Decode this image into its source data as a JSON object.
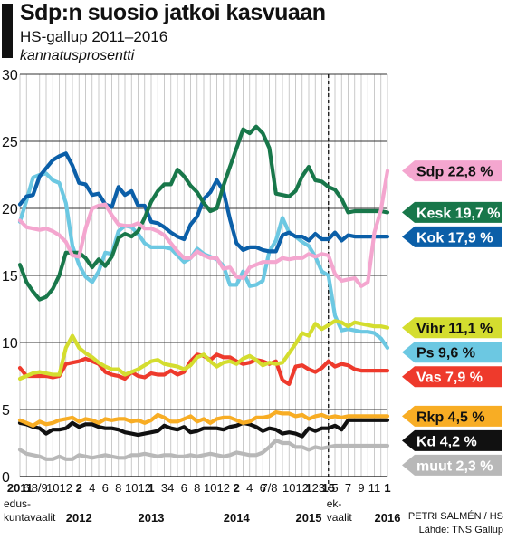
{
  "header": {
    "title": "Sdp:n suosio jatkoi kasvuaan",
    "subtitle": "HS-gallup 2011–2016",
    "unit": "kannatusprosentti"
  },
  "credits": {
    "author": "PETRI SALMÉN / HS",
    "source": "Lähde: TNS Gallup"
  },
  "chart_data": {
    "type": "line",
    "title": "Sdp:n suosio jatkoi kasvuaan",
    "subtitle": "HS-gallup 2011–2016",
    "ylabel": "kannatusprosentti",
    "ylim": [
      0,
      30
    ],
    "yticks": [
      "0",
      "5",
      "10",
      "15",
      "20",
      "25",
      "30"
    ],
    "grid": true,
    "x": [
      "2011-04",
      "2011-06",
      "2011-07",
      "2011-08",
      "2011-09",
      "2011-10",
      "2011-11",
      "2011-12",
      "2012-01",
      "2012-02",
      "2012-03",
      "2012-04",
      "2012-05",
      "2012-06",
      "2012-07",
      "2012-08",
      "2012-09",
      "2012-10",
      "2012-11",
      "2012-12",
      "2013-01",
      "2013-02",
      "2013-03",
      "2013-04",
      "2013-05",
      "2013-06",
      "2013-07",
      "2013-08",
      "2013-09",
      "2013-10",
      "2013-11",
      "2013-12",
      "2014-01",
      "2014-02",
      "2014-03",
      "2014-04",
      "2014-05",
      "2014-06",
      "2014-07",
      "2014-08",
      "2014-09",
      "2014-10",
      "2014-11",
      "2014-12",
      "2015-01",
      "2015-02",
      "2015-03",
      "2015-04",
      "2015-05",
      "2015-06",
      "2015-07",
      "2015-08",
      "2015-09",
      "2015-10",
      "2015-11",
      "2015-12",
      "2016-01"
    ],
    "x_tick_labels": [
      {
        "month": "2011-04",
        "text": "2011",
        "bold": true
      },
      {
        "month": "2011-06",
        "text": "6"
      },
      {
        "month": "2011-08",
        "text": "8/9"
      },
      {
        "month": "2011-10",
        "text": "10"
      },
      {
        "month": "2011-12",
        "text": "12"
      },
      {
        "month": "2012-02",
        "text": "2",
        "bold": true
      },
      {
        "month": "2012-04",
        "text": "4"
      },
      {
        "month": "2012-06",
        "text": "6"
      },
      {
        "month": "2012-08",
        "text": "8"
      },
      {
        "month": "2012-10",
        "text": "10"
      },
      {
        "month": "2012-12",
        "text": "12"
      },
      {
        "month": "2013-01",
        "text": "1",
        "bold": true
      },
      {
        "month": "2013-03",
        "text": "3"
      },
      {
        "month": "2013-04",
        "text": "4"
      },
      {
        "month": "2013-06",
        "text": "6"
      },
      {
        "month": "2013-08",
        "text": "8"
      },
      {
        "month": "2013-10",
        "text": "10"
      },
      {
        "month": "2013-12",
        "text": "12"
      },
      {
        "month": "2014-02",
        "text": "2",
        "bold": true
      },
      {
        "month": "2014-04",
        "text": "4"
      },
      {
        "month": "2014-06",
        "text": "6"
      },
      {
        "month": "2014-07",
        "text": "7/8"
      },
      {
        "month": "2014-10",
        "text": "10"
      },
      {
        "month": "2014-12",
        "text": "12"
      },
      {
        "month": "2015-01",
        "text": "1",
        "bold": true
      },
      {
        "month": "2015-02",
        "text": "2"
      },
      {
        "month": "2015-03",
        "text": "3"
      },
      {
        "month": "2015-04",
        "text": "15",
        "bold": true
      },
      {
        "month": "2015-05",
        "text": "5"
      },
      {
        "month": "2015-07",
        "text": "7"
      },
      {
        "month": "2015-09",
        "text": "9"
      },
      {
        "month": "2015-11",
        "text": "11"
      },
      {
        "month": "2016-01",
        "text": "1",
        "bold": true
      }
    ],
    "year_labels": [
      {
        "month": "2012-02",
        "text": "2012"
      },
      {
        "month": "2013-01",
        "text": "2013"
      },
      {
        "month": "2014-02",
        "text": "2014"
      },
      {
        "month": "2015-01",
        "text": "2015"
      },
      {
        "month": "2016-01",
        "text": "2016"
      }
    ],
    "annotations": [
      {
        "month": "2011-04",
        "lines": [
          "edus-",
          "kuntavaalit"
        ]
      },
      {
        "month": "2015-04",
        "lines": [
          "ek-",
          "vaalit"
        ],
        "dashed_line": true
      }
    ],
    "series": [
      {
        "name": "Sdp",
        "label": "Sdp 22,8 %",
        "color": "#f4a6cf",
        "text_color": "#111111",
        "values": [
          19.1,
          18.6,
          18.5,
          18.4,
          18.5,
          18.3,
          18.0,
          17.5,
          16.5,
          16.4,
          18.5,
          20.0,
          20.2,
          20.3,
          19.5,
          18.8,
          18.7,
          18.7,
          18.9,
          18.5,
          18.5,
          18.3,
          18.0,
          17.4,
          16.8,
          16.3,
          16.3,
          16.8,
          16.5,
          16.3,
          16.3,
          15.5,
          15.6,
          14.9,
          14.8,
          15.6,
          15.8,
          16.0,
          16.0,
          16.0,
          16.3,
          16.2,
          16.3,
          16.3,
          16.6,
          16.4,
          16.6,
          16.5,
          15.1,
          14.6,
          14.7,
          14.8,
          14.2,
          14.5,
          18.2,
          19.9,
          22.8
        ]
      },
      {
        "name": "Kesk",
        "label": "Kesk 19,7 %",
        "color": "#18774a",
        "text_color": "#ffffff",
        "values": [
          15.8,
          14.5,
          13.8,
          13.2,
          13.4,
          14.0,
          15.0,
          16.7,
          16.7,
          16.7,
          16.3,
          15.6,
          16.2,
          15.7,
          16.4,
          17.8,
          18.1,
          17.9,
          18.3,
          19.3,
          20.5,
          21.3,
          21.8,
          21.8,
          22.9,
          22.4,
          21.7,
          21.2,
          20.4,
          19.8,
          20.0,
          21.7,
          23.1,
          24.5,
          25.9,
          25.6,
          26.1,
          25.6,
          24.5,
          21.1,
          21.0,
          20.9,
          21.3,
          22.4,
          23.1,
          22.1,
          22.0,
          21.6,
          21.4,
          20.7,
          19.7,
          19.8,
          19.8,
          19.8,
          19.8,
          19.8,
          19.7
        ]
      },
      {
        "name": "Kok",
        "label": "Kok 17,9 %",
        "color": "#0b5fa8",
        "text_color": "#ffffff",
        "values": [
          20.3,
          20.9,
          21.0,
          22.4,
          23.0,
          23.6,
          23.9,
          24.1,
          23.2,
          21.9,
          21.8,
          21.0,
          21.1,
          20.3,
          20.1,
          21.6,
          21.0,
          21.3,
          20.2,
          20.2,
          19.0,
          18.9,
          18.6,
          18.2,
          17.9,
          17.7,
          18.8,
          19.4,
          20.7,
          21.2,
          22.1,
          21.3,
          19.2,
          17.4,
          16.9,
          17.1,
          17.1,
          16.9,
          16.8,
          16.8,
          18.0,
          18.2,
          17.9,
          17.9,
          17.6,
          18.1,
          17.7,
          17.7,
          18.2,
          17.6,
          18.0,
          17.9,
          17.9,
          17.9,
          17.9,
          17.9,
          17.9
        ]
      },
      {
        "name": "Vihr",
        "label": "Vihr 11,1 %",
        "color": "#d4dd2f",
        "text_color": "#111111",
        "values": [
          7.3,
          7.5,
          7.7,
          7.8,
          7.7,
          7.6,
          7.6,
          9.6,
          10.5,
          9.6,
          9.2,
          8.9,
          8.5,
          8.2,
          8.0,
          8.0,
          7.6,
          7.8,
          8.0,
          8.3,
          8.6,
          8.7,
          8.4,
          8.3,
          8.2,
          8.0,
          8.3,
          8.9,
          9.1,
          8.6,
          8.2,
          8.5,
          8.6,
          8.4,
          8.8,
          9.0,
          8.7,
          8.3,
          8.5,
          8.4,
          8.5,
          9.2,
          9.9,
          10.7,
          10.5,
          11.4,
          11.0,
          11.3,
          11.6,
          11.5,
          11.2,
          11.5,
          11.4,
          11.3,
          11.2,
          11.2,
          11.1
        ]
      },
      {
        "name": "Ps",
        "label": "Ps 9,6 %",
        "color": "#6cc8e2",
        "text_color": "#111111",
        "values": [
          19.0,
          20.6,
          22.3,
          22.5,
          22.6,
          22.1,
          21.9,
          20.4,
          17.2,
          15.8,
          14.9,
          14.5,
          15.3,
          16.7,
          16.6,
          18.3,
          18.7,
          18.6,
          18.1,
          17.4,
          17.1,
          17.1,
          17.1,
          17.0,
          16.5,
          16.0,
          16.3,
          17.0,
          16.6,
          16.4,
          16.2,
          15.7,
          14.3,
          14.3,
          15.3,
          14.2,
          14.3,
          14.6,
          16.8,
          17.6,
          19.3,
          18.2,
          17.9,
          17.5,
          17.2,
          16.4,
          15.3,
          15.0,
          12.0,
          10.9,
          11.0,
          10.9,
          10.8,
          10.8,
          10.7,
          10.3,
          9.6
        ]
      },
      {
        "name": "Vas",
        "label": "Vas 7,9 %",
        "color": "#ee3a2c",
        "text_color": "#ffffff",
        "values": [
          8.1,
          7.5,
          7.5,
          7.5,
          7.5,
          7.4,
          7.5,
          8.4,
          8.5,
          8.6,
          8.8,
          8.6,
          8.4,
          7.8,
          7.6,
          7.5,
          7.3,
          7.8,
          7.5,
          7.4,
          7.7,
          7.6,
          7.6,
          7.9,
          7.6,
          7.8,
          8.6,
          9.1,
          9.0,
          8.7,
          9.1,
          8.9,
          8.9,
          8.6,
          8.4,
          8.5,
          8.7,
          8.6,
          8.4,
          8.6,
          7.2,
          6.9,
          8.2,
          8.3,
          8.0,
          7.8,
          8.1,
          8.6,
          8.2,
          8.4,
          8.3,
          8.0,
          7.9,
          7.9,
          7.9,
          7.9,
          7.9
        ]
      },
      {
        "name": "Rkp",
        "label": "Rkp 4,5 %",
        "color": "#f8ad24",
        "text_color": "#111111",
        "values": [
          4.2,
          4.0,
          3.8,
          4.1,
          3.9,
          4.0,
          4.2,
          4.3,
          4.4,
          4.1,
          4.3,
          4.2,
          4.0,
          4.3,
          4.2,
          4.3,
          4.3,
          4.1,
          4.2,
          4.0,
          4.2,
          4.6,
          4.4,
          4.1,
          4.1,
          4.3,
          4.5,
          4.1,
          4.3,
          4.0,
          4.3,
          4.4,
          4.4,
          4.2,
          4.0,
          4.1,
          4.4,
          4.4,
          4.5,
          4.8,
          4.7,
          4.7,
          4.5,
          4.6,
          4.3,
          4.5,
          4.6,
          4.4,
          4.5,
          4.4,
          4.5,
          4.5,
          4.5,
          4.5,
          4.5,
          4.5,
          4.5
        ]
      },
      {
        "name": "Kd",
        "label": "Kd 4,2 %",
        "color": "#111111",
        "text_color": "#ffffff",
        "values": [
          4.0,
          3.9,
          3.7,
          3.6,
          3.2,
          3.5,
          3.5,
          3.6,
          4.0,
          3.7,
          3.9,
          3.9,
          3.7,
          3.6,
          3.6,
          3.5,
          3.3,
          3.2,
          3.1,
          3.2,
          3.3,
          3.4,
          3.8,
          3.6,
          3.5,
          3.7,
          3.3,
          3.4,
          3.6,
          3.6,
          3.6,
          3.5,
          3.7,
          3.8,
          4.0,
          3.9,
          3.7,
          3.4,
          3.6,
          3.5,
          3.2,
          3.3,
          3.2,
          3.0,
          3.6,
          3.4,
          3.6,
          3.6,
          3.8,
          3.5,
          4.2,
          4.2,
          4.2,
          4.2,
          4.2,
          4.2,
          4.2
        ]
      },
      {
        "name": "muut",
        "label": "muut 2,3 %",
        "color": "#b8b8b8",
        "text_color": "#ffffff",
        "values": [
          2.0,
          1.7,
          1.6,
          1.5,
          1.3,
          1.3,
          1.5,
          1.3,
          1.3,
          1.6,
          1.5,
          1.4,
          1.5,
          1.6,
          1.5,
          1.4,
          1.4,
          1.6,
          1.6,
          1.7,
          1.6,
          1.5,
          1.6,
          1.6,
          1.5,
          1.5,
          1.6,
          1.5,
          1.6,
          1.7,
          1.6,
          1.5,
          1.6,
          1.8,
          1.7,
          1.6,
          1.6,
          1.8,
          2.2,
          2.7,
          2.5,
          2.5,
          2.2,
          2.2,
          2.0,
          2.2,
          2.1,
          2.2,
          2.3,
          2.3,
          2.3,
          2.3,
          2.3,
          2.3,
          2.3,
          2.3,
          2.3
        ]
      }
    ]
  }
}
